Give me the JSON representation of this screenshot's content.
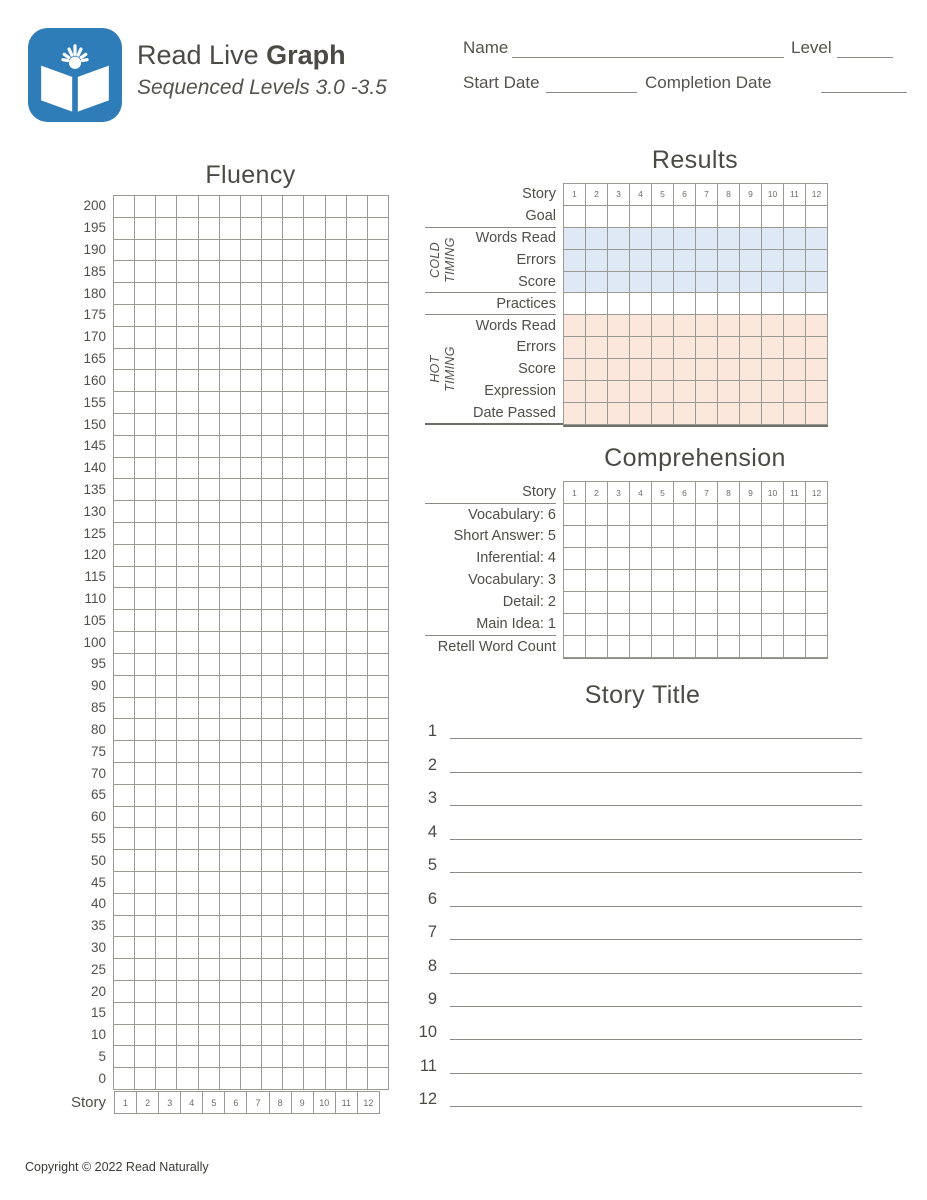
{
  "header": {
    "logo_icon": "book-sunburst-icon",
    "logo_color": "#2e7cb8",
    "title_regular": "Read Live ",
    "title_bold": "Graph",
    "subtitle": "Sequenced Levels 3.0 -3.5",
    "name_label": "Name",
    "name_value": "",
    "level_label": "Level",
    "level_value": "",
    "start_date_label": "Start Date",
    "start_date_value": "",
    "completion_date_label": "Completion Date",
    "completion_date_value": ""
  },
  "fluency": {
    "title": "Fluency",
    "y_ticks": [
      200,
      195,
      190,
      185,
      180,
      175,
      170,
      165,
      160,
      155,
      150,
      145,
      140,
      135,
      130,
      125,
      120,
      115,
      110,
      105,
      100,
      95,
      90,
      85,
      80,
      75,
      70,
      65,
      60,
      55,
      50,
      45,
      40,
      35,
      30,
      25,
      20,
      15,
      10,
      5,
      0
    ],
    "grid_columns": 13,
    "grid_rows": 41,
    "story_label": "Story",
    "story_numbers": [
      "1",
      "2",
      "3",
      "4",
      "5",
      "6",
      "7",
      "8",
      "9",
      "10",
      "11",
      "12"
    ]
  },
  "results": {
    "title": "Results",
    "story_label": "Story",
    "story_numbers": [
      "1",
      "2",
      "3",
      "4",
      "5",
      "6",
      "7",
      "8",
      "9",
      "10",
      "11",
      "12"
    ],
    "cold_timing_label": "COLD\nTIMING",
    "hot_timing_label": "HOT\nTIMING",
    "rows": [
      {
        "label": "Goal",
        "group": "none"
      },
      {
        "label": "Words Read",
        "group": "cold"
      },
      {
        "label": "Errors",
        "group": "cold"
      },
      {
        "label": "Score",
        "group": "cold"
      },
      {
        "label": "Practices",
        "group": "none"
      },
      {
        "label": "Words Read",
        "group": "hot"
      },
      {
        "label": "Errors",
        "group": "hot"
      },
      {
        "label": "Score",
        "group": "hot"
      },
      {
        "label": "Expression",
        "group": "hot"
      },
      {
        "label": "Date Passed",
        "group": "hot"
      }
    ],
    "group_colors": {
      "cold": "#dfe8f5",
      "hot": "#fbe7dc",
      "none": "#ffffff"
    }
  },
  "comprehension": {
    "title": "Comprehension",
    "story_label": "Story",
    "story_numbers": [
      "1",
      "2",
      "3",
      "4",
      "5",
      "6",
      "7",
      "8",
      "9",
      "10",
      "11",
      "12"
    ],
    "rows": [
      "Vocabulary: 6",
      "Short Answer: 5",
      "Inferential: 4",
      "Vocabulary: 3",
      "Detail: 2",
      "Main Idea: 1",
      "Retell Word Count"
    ]
  },
  "story_title": {
    "title": "Story Title",
    "numbers": [
      "1",
      "2",
      "3",
      "4",
      "5",
      "6",
      "7",
      "8",
      "9",
      "10",
      "11",
      "12"
    ]
  },
  "footer": {
    "copyright": "Copyright © 2022 Read Naturally"
  }
}
